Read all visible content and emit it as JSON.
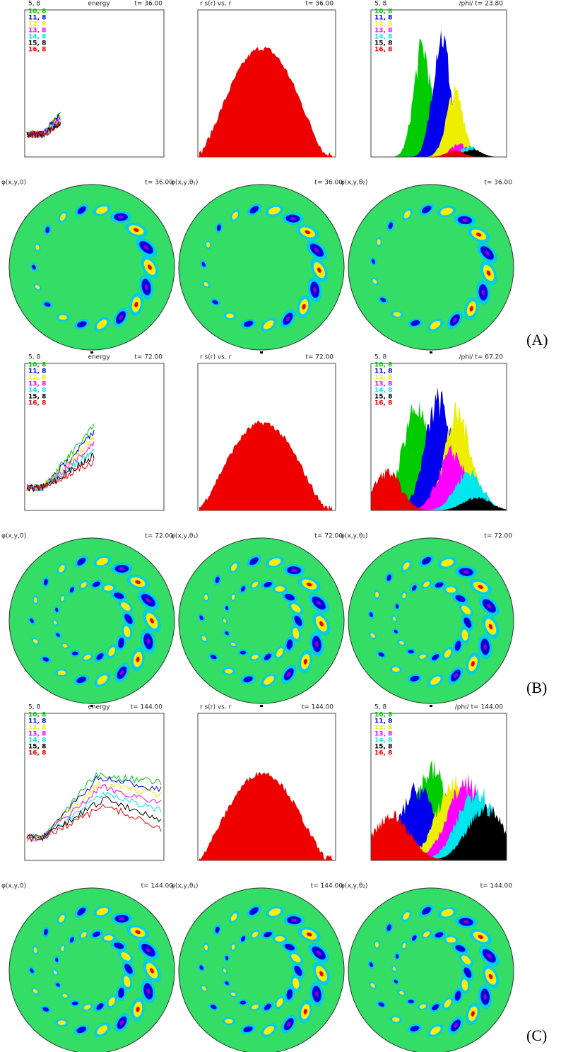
{
  "figure": {
    "panels": [
      {
        "label": "(A)",
        "energy_header": "5, 8",
        "energy_title": "energy",
        "energy_time": "t= 36.00",
        "profile_title": "r s(r) vs. r",
        "profile_time": "t= 36.00",
        "spectrum_header": "5, 8",
        "spectrum_title": "/phi/ t= 23.80",
        "maps": [
          {
            "title": "φ(x,y,0)",
            "time": "t= 36.00"
          },
          {
            "title": "φ(x,y,θ₁)",
            "time": "t= 36.00"
          },
          {
            "title": "φ(x,y,θ₂)",
            "time": "t= 36.00"
          }
        ]
      },
      {
        "label": "(B)",
        "energy_header": "5, 8",
        "energy_title": "energy",
        "energy_time": "t= 72.00",
        "profile_title": "r s(r) vs. r",
        "profile_time": "t= 72.00",
        "spectrum_header": "5, 8",
        "spectrum_title": "/phi/ t= 67.20",
        "maps": [
          {
            "title": "φ(x,y,0)",
            "time": "t= 72.00"
          },
          {
            "title": "φ(x,y,θ₁)",
            "time": "t= 72.00"
          },
          {
            "title": "φ(x,y,θ₂)",
            "time": "t= 72.00"
          }
        ]
      },
      {
        "label": "(C)",
        "energy_header": "5, 8",
        "energy_title": "energy",
        "energy_time": "t= 144.00",
        "profile_title": "r s(r) vs. r",
        "profile_time": "t= 144.00",
        "spectrum_header": "5, 8",
        "spectrum_title": "/phi/ t= 144.00",
        "maps": [
          {
            "title": "φ(x,y,0)",
            "time": "t= 144.00"
          },
          {
            "title": "φ(x,y,θ₁)",
            "time": "t= 144.00"
          },
          {
            "title": "φ(x,y,θ₂)",
            "time": "t= 144.00"
          }
        ]
      }
    ],
    "legend": [
      {
        "name": "10, 8",
        "color": "#00cc00"
      },
      {
        "name": "11, 8",
        "color": "#0000ee"
      },
      {
        "name": "12, 8",
        "color": "#eeee00"
      },
      {
        "name": "13, 8",
        "color": "#ff00ff"
      },
      {
        "name": "14, 8",
        "color": "#00e5ee"
      },
      {
        "name": "15, 8",
        "color": "#000000"
      },
      {
        "name": "16, 8",
        "color": "#ee0000"
      }
    ]
  }
}
